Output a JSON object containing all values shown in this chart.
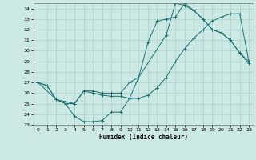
{
  "xlabel": "Humidex (Indice chaleur)",
  "bg_color": "#cce8e4",
  "grid_color": "#b0d4d0",
  "line_color": "#1a7070",
  "xlim": [
    -0.5,
    23.5
  ],
  "ylim": [
    23,
    34.5
  ],
  "xticks": [
    0,
    1,
    2,
    3,
    4,
    5,
    6,
    7,
    8,
    9,
    10,
    11,
    12,
    13,
    14,
    15,
    16,
    17,
    18,
    19,
    20,
    21,
    22,
    23
  ],
  "yticks": [
    23,
    24,
    25,
    26,
    27,
    28,
    29,
    30,
    31,
    32,
    33,
    34
  ],
  "curve1_x": [
    0,
    1,
    2,
    3,
    4,
    5,
    6,
    7,
    8,
    9,
    10,
    11,
    12,
    13,
    14,
    15,
    16,
    17,
    18,
    19,
    20,
    21,
    22,
    23
  ],
  "curve1_y": [
    27.0,
    26.7,
    25.4,
    25.0,
    23.8,
    23.3,
    23.3,
    23.4,
    24.2,
    24.2,
    25.5,
    27.5,
    30.8,
    32.8,
    33.0,
    33.2,
    34.5,
    33.8,
    33.0,
    32.0,
    31.7,
    31.0,
    29.8,
    28.8
  ],
  "curve2_x": [
    0,
    1,
    2,
    3,
    4,
    5,
    6,
    7,
    8,
    9,
    10,
    11,
    12,
    13,
    14,
    15,
    16,
    17,
    18,
    19,
    20,
    21,
    22,
    23
  ],
  "curve2_y": [
    27.0,
    26.7,
    25.4,
    25.2,
    25.0,
    26.2,
    26.0,
    25.8,
    25.7,
    25.7,
    25.5,
    25.5,
    25.8,
    26.5,
    27.5,
    29.0,
    30.2,
    31.2,
    32.0,
    32.8,
    33.2,
    33.5,
    33.5,
    29.0
  ],
  "curve3_x": [
    0,
    2,
    3,
    4,
    5,
    6,
    7,
    8,
    9,
    10,
    11,
    14,
    15,
    16,
    17,
    18,
    19,
    20,
    21,
    22,
    23
  ],
  "curve3_y": [
    27.0,
    25.4,
    25.0,
    25.0,
    26.2,
    26.2,
    26.0,
    26.0,
    26.0,
    27.0,
    27.5,
    31.5,
    34.5,
    34.3,
    33.8,
    33.0,
    32.0,
    31.7,
    31.0,
    29.8,
    29.0
  ]
}
